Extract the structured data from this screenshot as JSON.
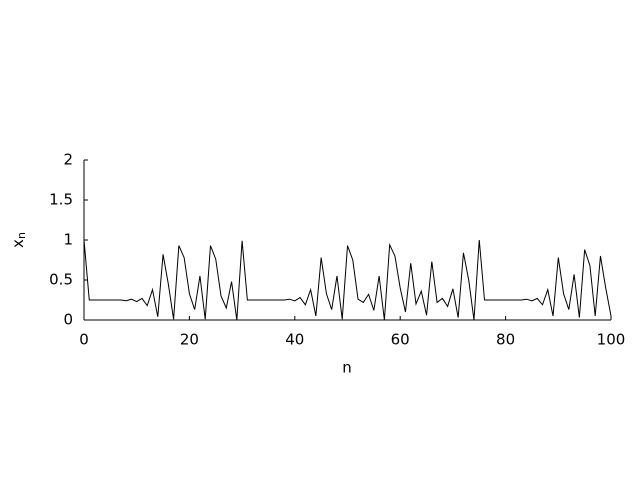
{
  "chart_data": {
    "type": "line",
    "xlabel": "n",
    "ylabel": "x",
    "ylabel_subscript": "n",
    "xlim": [
      0,
      100
    ],
    "ylim": [
      0,
      2
    ],
    "xticks": [
      0,
      20,
      40,
      60,
      80,
      100
    ],
    "yticks": [
      0,
      0.5,
      1,
      1.5,
      2
    ],
    "grid": false,
    "series": [
      {
        "color": "#000000",
        "x": [
          0,
          1,
          2,
          3,
          4,
          5,
          6,
          7,
          8,
          9,
          10,
          11,
          12,
          13,
          14,
          15,
          16,
          17,
          18,
          19,
          20,
          21,
          22,
          23,
          24,
          25,
          26,
          27,
          28,
          29,
          30,
          31,
          32,
          33,
          34,
          35,
          36,
          37,
          38,
          39,
          40,
          41,
          42,
          43,
          44,
          45,
          46,
          47,
          48,
          49,
          50,
          51,
          52,
          53,
          54,
          55,
          56,
          57,
          58,
          59,
          60,
          61,
          62,
          63,
          64,
          65,
          66,
          67,
          68,
          69,
          70,
          71,
          72,
          73,
          74,
          75,
          76,
          77,
          78,
          79,
          80,
          81,
          82,
          83,
          84,
          85,
          86,
          87,
          88,
          89,
          90,
          91,
          92,
          93,
          94,
          95,
          96,
          97,
          98,
          99,
          100
        ],
        "values": [
          1.0,
          0.25,
          0.25,
          0.25,
          0.25,
          0.25,
          0.25,
          0.25,
          0.24,
          0.26,
          0.23,
          0.27,
          0.18,
          0.38,
          0.04,
          0.82,
          0.45,
          0.01,
          0.93,
          0.78,
          0.33,
          0.13,
          0.55,
          0.01,
          0.93,
          0.76,
          0.3,
          0.15,
          0.48,
          0.0,
          0.99,
          0.25,
          0.25,
          0.25,
          0.25,
          0.25,
          0.25,
          0.25,
          0.25,
          0.26,
          0.24,
          0.28,
          0.19,
          0.38,
          0.05,
          0.78,
          0.33,
          0.13,
          0.55,
          0.01,
          0.93,
          0.75,
          0.26,
          0.22,
          0.32,
          0.12,
          0.55,
          0.0,
          0.94,
          0.8,
          0.4,
          0.1,
          0.71,
          0.2,
          0.36,
          0.06,
          0.73,
          0.22,
          0.27,
          0.17,
          0.39,
          0.03,
          0.84,
          0.5,
          0.0,
          1.0,
          0.25,
          0.25,
          0.25,
          0.25,
          0.25,
          0.25,
          0.25,
          0.25,
          0.26,
          0.24,
          0.27,
          0.19,
          0.38,
          0.05,
          0.78,
          0.33,
          0.13,
          0.57,
          0.03,
          0.88,
          0.68,
          0.05,
          0.8,
          0.4,
          0.05
        ]
      }
    ]
  }
}
